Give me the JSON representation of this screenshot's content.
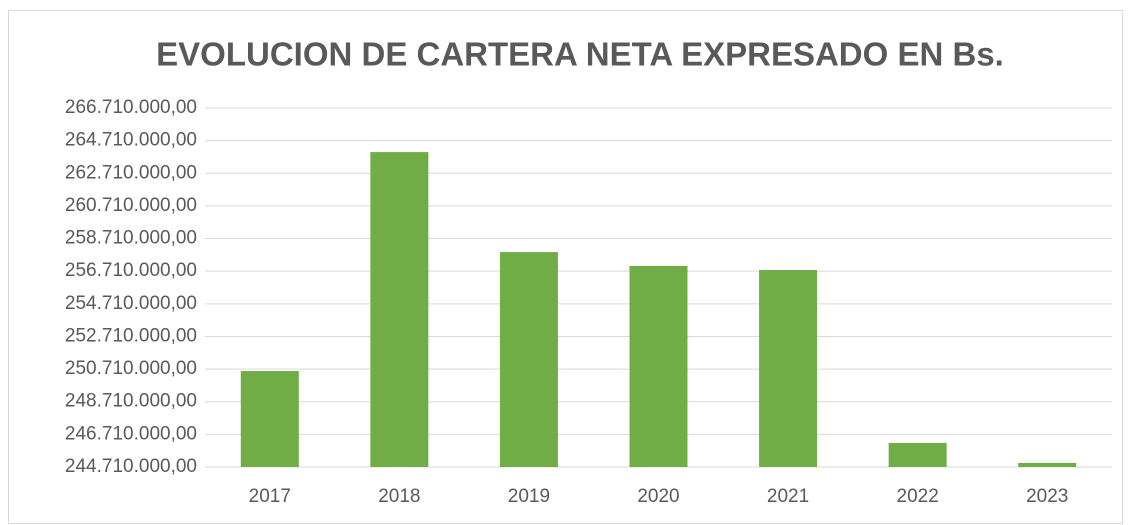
{
  "chart_data": {
    "type": "bar",
    "title": "EVOLUCION DE CARTERA NETA EXPRESADO EN Bs.",
    "categories": [
      "2017",
      "2018",
      "2019",
      "2020",
      "2021",
      "2022",
      "2023"
    ],
    "values": [
      250590000,
      264010000,
      257880000,
      257030000,
      256780000,
      246180000,
      244960000
    ],
    "color": "#70ad47",
    "ylim": [
      244710000,
      266710000
    ],
    "yticks": [
      {
        "value": 244710000,
        "label": "244.710.000,00"
      },
      {
        "value": 246710000,
        "label": "246.710.000,00"
      },
      {
        "value": 248710000,
        "label": "248.710.000,00"
      },
      {
        "value": 250710000,
        "label": "250.710.000,00"
      },
      {
        "value": 252710000,
        "label": "252.710.000,00"
      },
      {
        "value": 254710000,
        "label": "254.710.000,00"
      },
      {
        "value": 256710000,
        "label": "256.710.000,00"
      },
      {
        "value": 258710000,
        "label": "258.710.000,00"
      },
      {
        "value": 260710000,
        "label": "260.710.000,00"
      },
      {
        "value": 262710000,
        "label": "262.710.000,00"
      },
      {
        "value": 264710000,
        "label": "264.710.000,00"
      },
      {
        "value": 266710000,
        "label": "266.710.000,00"
      }
    ],
    "grid": true
  }
}
